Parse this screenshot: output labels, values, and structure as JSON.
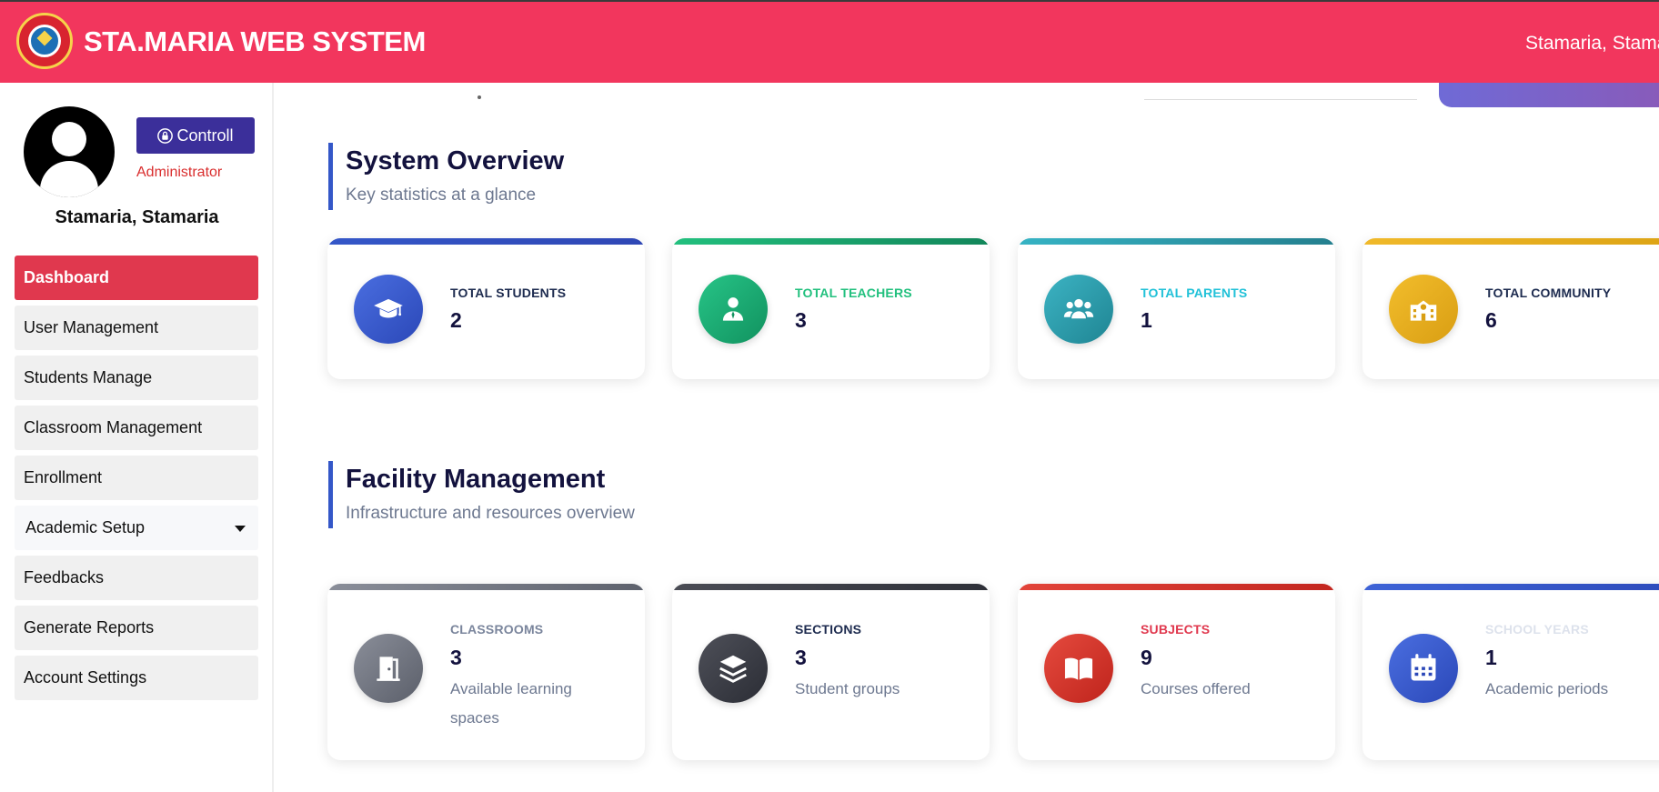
{
  "header": {
    "brand": "STA.MARIA WEB SYSTEM",
    "user_name": "Stamaria, Stama"
  },
  "sidebar": {
    "control_label": "Controll",
    "role": "Administrator",
    "user_name": "Stamaria, Stamaria",
    "items": [
      {
        "label": "Dashboard"
      },
      {
        "label": "User Management"
      },
      {
        "label": "Students Manage"
      },
      {
        "label": "Classroom Management"
      },
      {
        "label": "Enrollment"
      },
      {
        "label": "Academic Setup"
      },
      {
        "label": "Feedbacks"
      },
      {
        "label": "Generate Reports"
      },
      {
        "label": "Account Settings"
      }
    ]
  },
  "overview": {
    "title": "System Overview",
    "subtitle": "Key statistics at a glance",
    "cards": [
      {
        "label": "TOTAL STUDENTS",
        "value": "2",
        "icon": "graduation-cap-icon",
        "accent": "#3457c8",
        "label_color": "#1d2b4f"
      },
      {
        "label": "TOTAL TEACHERS",
        "value": "3",
        "icon": "teacher-icon",
        "accent": "#18a36e",
        "label_color": "#22c07e"
      },
      {
        "label": "TOTAL PARENTS",
        "value": "1",
        "icon": "users-icon",
        "accent": "#2a9fb0",
        "label_color": "#21c1d8"
      },
      {
        "label": "TOTAL COMMUNITY",
        "value": "6",
        "icon": "school-icon",
        "accent": "#e9b21f",
        "label_color": "#1d2b4f"
      }
    ]
  },
  "facility": {
    "title": "Facility Management",
    "subtitle": "Infrastructure and resources overview",
    "cards": [
      {
        "label": "CLASSROOMS",
        "value": "3",
        "desc": "Available learning spaces",
        "icon": "door-icon",
        "accent": "#6c707c",
        "label_color": "#7a859c"
      },
      {
        "label": "SECTIONS",
        "value": "3",
        "desc": "Student groups",
        "icon": "layers-icon",
        "accent": "#3d3f48",
        "label_color": "#1d2b4f"
      },
      {
        "label": "SUBJECTS",
        "value": "9",
        "desc": "Courses offered",
        "icon": "book-icon",
        "accent": "#d9332c",
        "label_color": "#e0384e"
      },
      {
        "label": "SCHOOL YEARS",
        "value": "1",
        "desc": "Academic periods",
        "icon": "calendar-icon",
        "accent": "#3457c8",
        "label_color": "#dde2ec"
      }
    ]
  }
}
